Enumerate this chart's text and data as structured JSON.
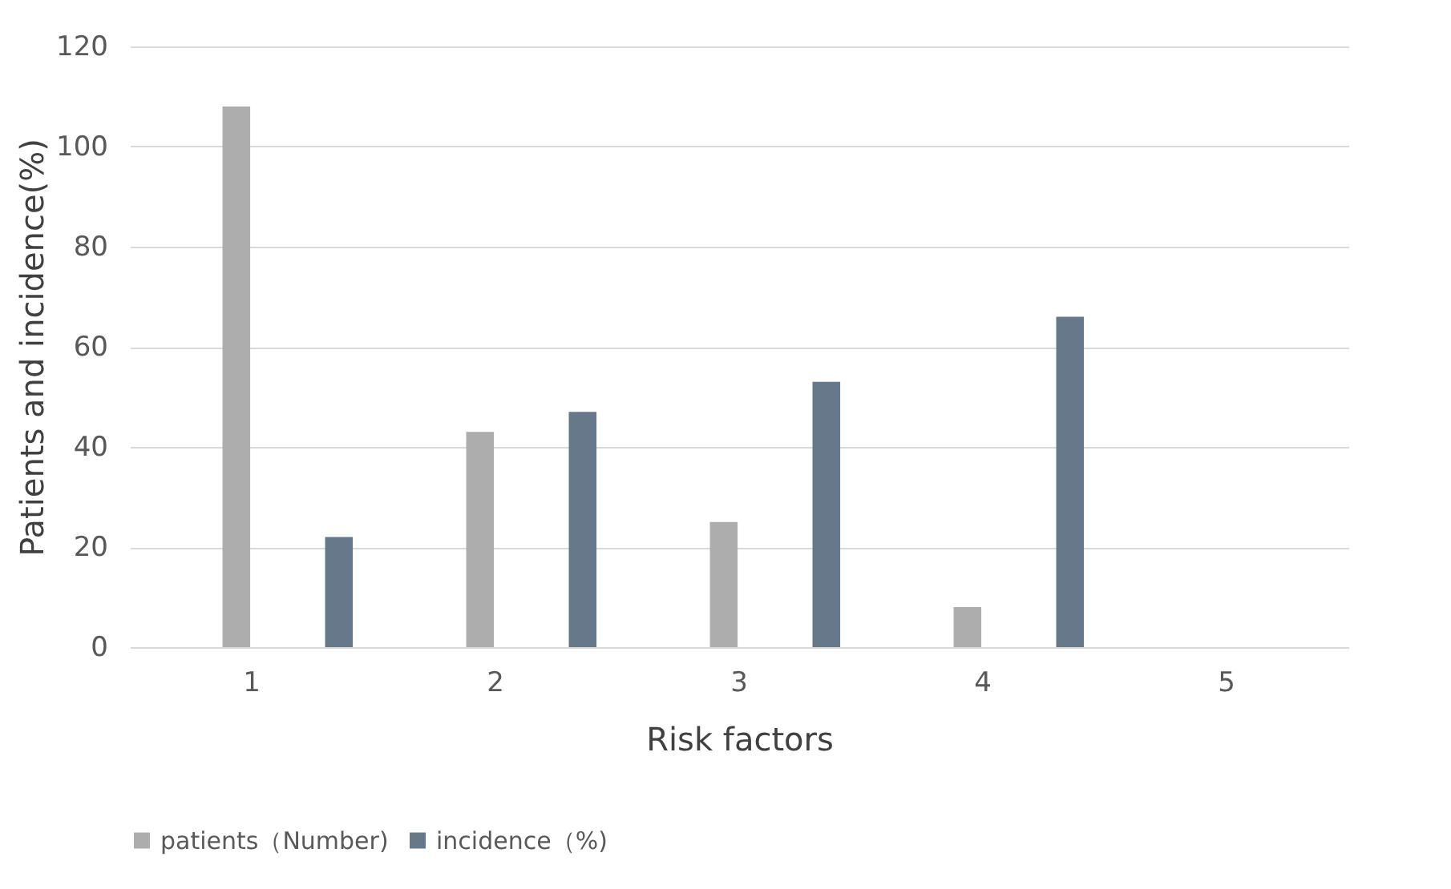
{
  "chart_data": {
    "type": "bar",
    "xlabel": "Risk factors",
    "ylabel": "Patients and incidence(%)",
    "categories": [
      "1",
      "2",
      "3",
      "4",
      "5"
    ],
    "series": [
      {
        "name": "patients（Number)",
        "color": "#adadad",
        "values": [
          108,
          43,
          25,
          8,
          null
        ]
      },
      {
        "name": "incidence（%)",
        "color": "#67788a",
        "values": [
          22,
          47,
          53,
          66,
          null
        ]
      }
    ],
    "ylim": [
      0,
      120
    ],
    "yticks": [
      0,
      20,
      40,
      60,
      80,
      100,
      120
    ],
    "grid": "y",
    "legend": "bottom"
  }
}
